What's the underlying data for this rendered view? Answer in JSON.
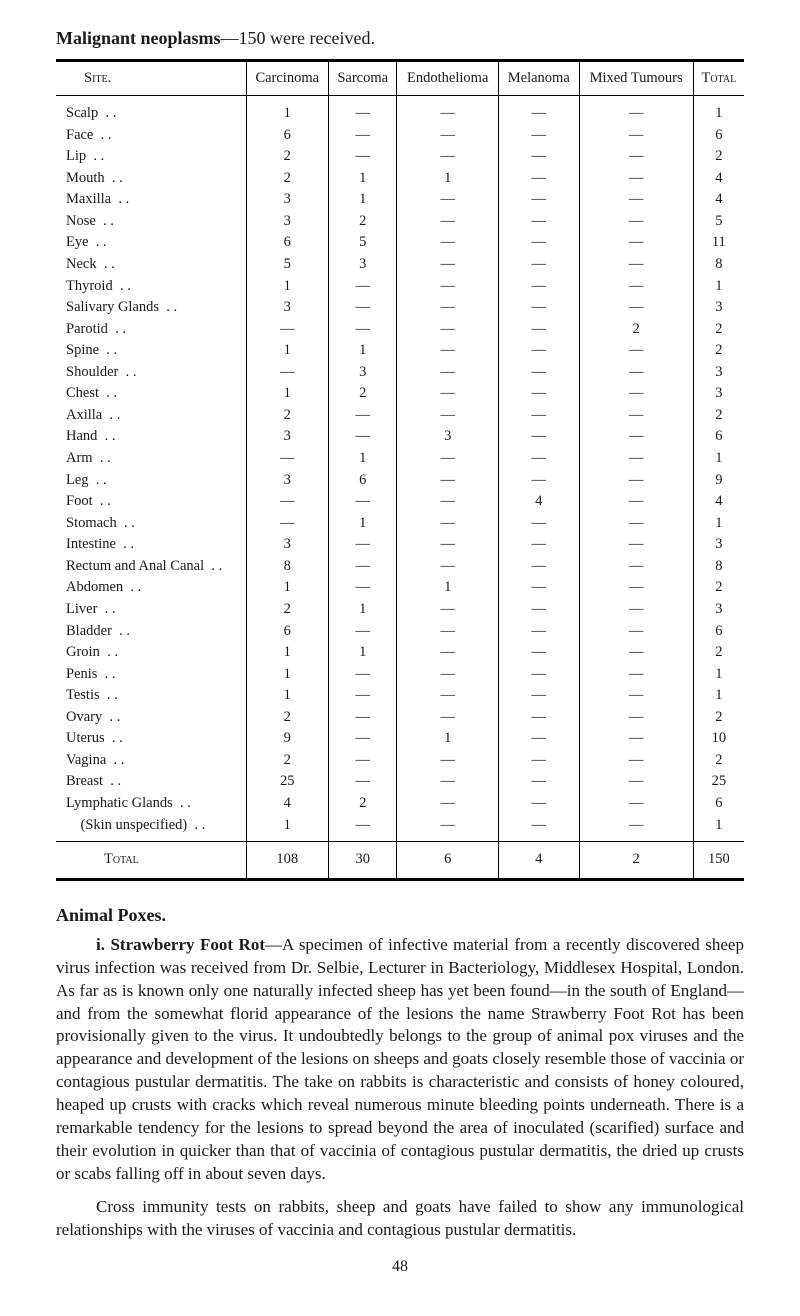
{
  "title_prefix": "Malignant neoplasms",
  "title_suffix": "—150 were received.",
  "columns": [
    "Site.",
    "Carcinoma",
    "Sarcoma",
    "Endothelioma",
    "Melanoma",
    "Mixed Tumours",
    "Total"
  ],
  "rows": [
    {
      "site": "Scalp",
      "c": "1",
      "s": "—",
      "e": "—",
      "m": "—",
      "x": "—",
      "t": "1"
    },
    {
      "site": "Face",
      "c": "6",
      "s": "—",
      "e": "—",
      "m": "—",
      "x": "—",
      "t": "6"
    },
    {
      "site": "Lip",
      "c": "2",
      "s": "—",
      "e": "—",
      "m": "—",
      "x": "—",
      "t": "2"
    },
    {
      "site": "Mouth",
      "c": "2",
      "s": "1",
      "e": "1",
      "m": "—",
      "x": "—",
      "t": "4"
    },
    {
      "site": "Maxilla",
      "c": "3",
      "s": "1",
      "e": "—",
      "m": "—",
      "x": "—",
      "t": "4"
    },
    {
      "site": "Nose",
      "c": "3",
      "s": "2",
      "e": "—",
      "m": "—",
      "x": "—",
      "t": "5"
    },
    {
      "site": "Eye",
      "c": "6",
      "s": "5",
      "e": "—",
      "m": "—",
      "x": "—",
      "t": "11"
    },
    {
      "site": "Neck",
      "c": "5",
      "s": "3",
      "e": "—",
      "m": "—",
      "x": "—",
      "t": "8"
    },
    {
      "site": "Thyroid",
      "c": "1",
      "s": "—",
      "e": "—",
      "m": "—",
      "x": "—",
      "t": "1"
    },
    {
      "site": "Salivary Glands",
      "c": "3",
      "s": "—",
      "e": "—",
      "m": "—",
      "x": "—",
      "t": "3"
    },
    {
      "site": "Parotid",
      "c": "—",
      "s": "—",
      "e": "—",
      "m": "—",
      "x": "2",
      "t": "2"
    },
    {
      "site": "Spine",
      "c": "1",
      "s": "1",
      "e": "—",
      "m": "—",
      "x": "—",
      "t": "2"
    },
    {
      "site": "Shoulder",
      "c": "—",
      "s": "3",
      "e": "—",
      "m": "—",
      "x": "—",
      "t": "3"
    },
    {
      "site": "Chest",
      "c": "1",
      "s": "2",
      "e": "—",
      "m": "—",
      "x": "—",
      "t": "3"
    },
    {
      "site": "Axilla",
      "c": "2",
      "s": "—",
      "e": "—",
      "m": "—",
      "x": "—",
      "t": "2"
    },
    {
      "site": "Hand",
      "c": "3",
      "s": "—",
      "e": "3",
      "m": "—",
      "x": "—",
      "t": "6"
    },
    {
      "site": "Arm",
      "c": "—",
      "s": "1",
      "e": "—",
      "m": "—",
      "x": "—",
      "t": "1"
    },
    {
      "site": "Leg",
      "c": "3",
      "s": "6",
      "e": "—",
      "m": "—",
      "x": "—",
      "t": "9"
    },
    {
      "site": "Foot",
      "c": "—",
      "s": "—",
      "e": "—",
      "m": "4",
      "x": "—",
      "t": "4"
    },
    {
      "site": "Stomach",
      "c": "—",
      "s": "1",
      "e": "—",
      "m": "—",
      "x": "—",
      "t": "1"
    },
    {
      "site": "Intestine",
      "c": "3",
      "s": "—",
      "e": "—",
      "m": "—",
      "x": "—",
      "t": "3"
    },
    {
      "site": "Rectum and Anal Canal",
      "c": "8",
      "s": "—",
      "e": "—",
      "m": "—",
      "x": "—",
      "t": "8"
    },
    {
      "site": "Abdomen",
      "c": "1",
      "s": "—",
      "e": "1",
      "m": "—",
      "x": "—",
      "t": "2"
    },
    {
      "site": "Liver",
      "c": "2",
      "s": "1",
      "e": "—",
      "m": "—",
      "x": "—",
      "t": "3"
    },
    {
      "site": "Bladder",
      "c": "6",
      "s": "—",
      "e": "—",
      "m": "—",
      "x": "—",
      "t": "6"
    },
    {
      "site": "Groin",
      "c": "1",
      "s": "1",
      "e": "—",
      "m": "—",
      "x": "—",
      "t": "2"
    },
    {
      "site": "Penis",
      "c": "1",
      "s": "—",
      "e": "—",
      "m": "—",
      "x": "—",
      "t": "1"
    },
    {
      "site": "Testis",
      "c": "1",
      "s": "—",
      "e": "—",
      "m": "—",
      "x": "—",
      "t": "1"
    },
    {
      "site": "Ovary",
      "c": "2",
      "s": "—",
      "e": "—",
      "m": "—",
      "x": "—",
      "t": "2"
    },
    {
      "site": "Uterus",
      "c": "9",
      "s": "—",
      "e": "1",
      "m": "—",
      "x": "—",
      "t": "10"
    },
    {
      "site": "Vagina",
      "c": "2",
      "s": "—",
      "e": "—",
      "m": "—",
      "x": "—",
      "t": "2"
    },
    {
      "site": "Breast",
      "c": "25",
      "s": "—",
      "e": "—",
      "m": "—",
      "x": "—",
      "t": "25"
    },
    {
      "site": "Lymphatic Glands",
      "c": "4",
      "s": "2",
      "e": "—",
      "m": "—",
      "x": "—",
      "t": "6"
    },
    {
      "site": "(Skin unspecified)",
      "c": "1",
      "s": "—",
      "e": "—",
      "m": "—",
      "x": "—",
      "t": "1",
      "indent": true
    }
  ],
  "total_row": {
    "label": "Total",
    "c": "108",
    "s": "30",
    "e": "6",
    "m": "4",
    "x": "2",
    "t": "150"
  },
  "section_head": "Animal Poxes.",
  "para1_lead": "i.   Strawberry Foot Rot",
  "para1_rest": "—A specimen of infective material from a recently discovered sheep virus infection was received from Dr. Selbie, Lecturer in Bacteriology, Middlesex Hospital, London. As far as is known only one naturally infected sheep has yet been found—in the south of England—and from the somewhat florid appearance of the lesions the name Strawberry Foot Rot has been provisionally given to the virus. It undoubtedly belongs to the group of animal pox viruses and the appearance and development of the lesions on sheeps and goats closely resemble those of vaccinia or contagious pustular dermatitis. The take on rabbits is characteristic and consists of honey coloured, heaped up crusts with cracks which reveal numerous minute bleeding points underneath. There is a remarkable tendency for the lesions to spread beyond the area of inoculated (scarified) surface and their evolution in quicker than that of vaccinia of contagious pustular dermatitis, the dried up crusts or scabs falling off in about seven days.",
  "para2": "Cross immunity tests on rabbits, sheep and goats have failed to show any immunological relationships with the viruses of vaccinia and contagious pustular dermatitis.",
  "page_number": "48",
  "colors": {
    "text": "#1a1a1a",
    "bg": "#ffffff",
    "rule": "#000000"
  },
  "fonts": {
    "body": "Times New Roman",
    "size_body_pt": 12,
    "size_title_pt": 13
  }
}
